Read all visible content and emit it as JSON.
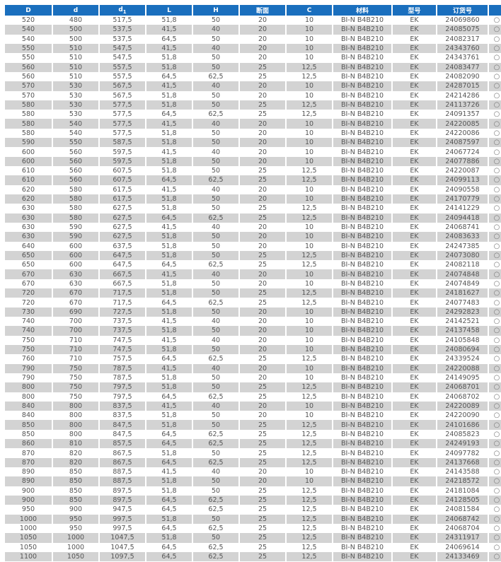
{
  "header": {
    "D": "D",
    "d": "d",
    "d1_base": "d",
    "d1_sub": "1",
    "L": "L",
    "H": "H",
    "section": "断面",
    "C": "C",
    "material": "材料",
    "type": "型号",
    "order_no": "订货号",
    "mark": ""
  },
  "accent_color": "#1a6fbe",
  "stripe_color": "#d3d3d3",
  "row_marker_icon": "circle-outline",
  "rows": [
    [
      "520",
      "480",
      "517,5",
      "51,8",
      "50",
      "20",
      "10",
      "BI-N B4B210",
      "EK",
      "24069860"
    ],
    [
      "540",
      "500",
      "537,5",
      "41,5",
      "40",
      "20",
      "10",
      "BI-N B4B210",
      "EK",
      "24085075"
    ],
    [
      "540",
      "500",
      "537,5",
      "64,5",
      "50",
      "20",
      "10",
      "BI-N B4B210",
      "EK",
      "24082317"
    ],
    [
      "550",
      "510",
      "547,5",
      "41,5",
      "40",
      "20",
      "10",
      "BI-N B4B210",
      "EK",
      "24343760"
    ],
    [
      "550",
      "510",
      "547,5",
      "51,8",
      "50",
      "20",
      "10",
      "BI-N B4B210",
      "EK",
      "24343761"
    ],
    [
      "560",
      "510",
      "557,5",
      "51,8",
      "50",
      "25",
      "12,5",
      "BI-N B4B210",
      "EK",
      "24083477"
    ],
    [
      "560",
      "510",
      "557,5",
      "64,5",
      "62,5",
      "25",
      "12,5",
      "BI-N B4B210",
      "EK",
      "24082090"
    ],
    [
      "570",
      "530",
      "567,5",
      "41,5",
      "40",
      "20",
      "10",
      "BI-N B4B210",
      "EK",
      "24287015"
    ],
    [
      "570",
      "530",
      "567,5",
      "51,8",
      "50",
      "20",
      "10",
      "BI-N B4B210",
      "EK",
      "24214286"
    ],
    [
      "580",
      "530",
      "577,5",
      "51,8",
      "50",
      "25",
      "12,5",
      "BI-N B4B210",
      "EK",
      "24113726"
    ],
    [
      "580",
      "530",
      "577,5",
      "64,5",
      "62,5",
      "25",
      "12,5",
      "BI-N B4B210",
      "EK",
      "24091357"
    ],
    [
      "580",
      "540",
      "577,5",
      "41,5",
      "40",
      "20",
      "10",
      "BI-N B4B210",
      "EK",
      "24220085"
    ],
    [
      "580",
      "540",
      "577,5",
      "51,8",
      "50",
      "20",
      "10",
      "BI-N B4B210",
      "EK",
      "24220086"
    ],
    [
      "590",
      "550",
      "587,5",
      "51,8",
      "50",
      "20",
      "10",
      "BI-N B4B210",
      "EK",
      "24087597"
    ],
    [
      "600",
      "560",
      "597,5",
      "41,5",
      "40",
      "20",
      "10",
      "BI-N B4B210",
      "EK",
      "24067724"
    ],
    [
      "600",
      "560",
      "597,5",
      "51,8",
      "50",
      "20",
      "10",
      "BI-N B4B210",
      "EK",
      "24077886"
    ],
    [
      "610",
      "560",
      "607,5",
      "51,8",
      "50",
      "25",
      "12,5",
      "BI-N B4B210",
      "EK",
      "24220087"
    ],
    [
      "610",
      "560",
      "607,5",
      "64,5",
      "62,5",
      "25",
      "12,5",
      "BI-N B4B210",
      "EK",
      "24099113"
    ],
    [
      "620",
      "580",
      "617,5",
      "41,5",
      "40",
      "20",
      "10",
      "BI-N B4B210",
      "EK",
      "24090558"
    ],
    [
      "620",
      "580",
      "617,5",
      "51,8",
      "50",
      "20",
      "10",
      "BI-N B4B210",
      "EK",
      "24170779"
    ],
    [
      "630",
      "580",
      "627,5",
      "51,8",
      "50",
      "25",
      "12,5",
      "BI-N B4B210",
      "EK",
      "24141229"
    ],
    [
      "630",
      "580",
      "627,5",
      "64,5",
      "62,5",
      "25",
      "12,5",
      "BI-N B4B210",
      "EK",
      "24094418"
    ],
    [
      "630",
      "590",
      "627,5",
      "41,5",
      "40",
      "20",
      "10",
      "BI-N B4B210",
      "EK",
      "24068741"
    ],
    [
      "630",
      "590",
      "627,5",
      "51,8",
      "50",
      "20",
      "10",
      "BI-N B4B210",
      "EK",
      "24083633"
    ],
    [
      "640",
      "600",
      "637,5",
      "51,8",
      "50",
      "20",
      "10",
      "BI-N B4B210",
      "EK",
      "24247385"
    ],
    [
      "650",
      "600",
      "647,5",
      "51,8",
      "50",
      "25",
      "12,5",
      "BI-N B4B210",
      "EK",
      "24073080"
    ],
    [
      "650",
      "600",
      "647,5",
      "64,5",
      "62,5",
      "25",
      "12,5",
      "BI-N B4B210",
      "EK",
      "24082118"
    ],
    [
      "670",
      "630",
      "667,5",
      "41,5",
      "40",
      "20",
      "10",
      "BI-N B4B210",
      "EK",
      "24074848"
    ],
    [
      "670",
      "630",
      "667,5",
      "51,8",
      "50",
      "20",
      "10",
      "BI-N B4B210",
      "EK",
      "24074849"
    ],
    [
      "720",
      "670",
      "717,5",
      "51,8",
      "50",
      "25",
      "12,5",
      "BI-N B4B210",
      "EK",
      "24181627"
    ],
    [
      "720",
      "670",
      "717,5",
      "64,5",
      "62,5",
      "25",
      "12,5",
      "BI-N B4B210",
      "EK",
      "24077483"
    ],
    [
      "730",
      "690",
      "727,5",
      "51,8",
      "50",
      "20",
      "10",
      "BI-N B4B210",
      "EK",
      "24292823"
    ],
    [
      "740",
      "700",
      "737,5",
      "41,5",
      "40",
      "20",
      "10",
      "BI-N B4B210",
      "EK",
      "24142521"
    ],
    [
      "740",
      "700",
      "737,5",
      "51,8",
      "50",
      "20",
      "10",
      "BI-N B4B210",
      "EK",
      "24137458"
    ],
    [
      "750",
      "710",
      "747,5",
      "41,5",
      "40",
      "20",
      "10",
      "BI-N B4B210",
      "EK",
      "24105848"
    ],
    [
      "750",
      "710",
      "747,5",
      "51,8",
      "50",
      "20",
      "10",
      "BI-N B4B210",
      "EK",
      "24080694"
    ],
    [
      "760",
      "710",
      "757,5",
      "64,5",
      "62,5",
      "25",
      "12,5",
      "BI-N B4B210",
      "EK",
      "24339524"
    ],
    [
      "790",
      "750",
      "787,5",
      "41,5",
      "40",
      "20",
      "10",
      "BI-N B4B210",
      "EK",
      "24220088"
    ],
    [
      "790",
      "750",
      "787,5",
      "51,8",
      "50",
      "20",
      "10",
      "BI-N B4B210",
      "EK",
      "24149095"
    ],
    [
      "800",
      "750",
      "797,5",
      "51,8",
      "50",
      "25",
      "12,5",
      "BI-N B4B210",
      "EK",
      "24068701"
    ],
    [
      "800",
      "750",
      "797,5",
      "64,5",
      "62,5",
      "25",
      "12,5",
      "BI-N B4B210",
      "EK",
      "24068702"
    ],
    [
      "840",
      "800",
      "837,5",
      "41,5",
      "40",
      "20",
      "10",
      "BI-N B4B210",
      "EK",
      "24220089"
    ],
    [
      "840",
      "800",
      "837,5",
      "51,8",
      "50",
      "20",
      "10",
      "BI-N B4B210",
      "EK",
      "24220090"
    ],
    [
      "850",
      "800",
      "847,5",
      "51,8",
      "50",
      "25",
      "12,5",
      "BI-N B4B210",
      "EK",
      "24101686"
    ],
    [
      "850",
      "800",
      "847,5",
      "64,5",
      "62,5",
      "25",
      "12,5",
      "BI-N B4B210",
      "EK",
      "24085823"
    ],
    [
      "860",
      "810",
      "857,5",
      "64,5",
      "62,5",
      "25",
      "12,5",
      "BI-N B4B210",
      "EK",
      "24249193"
    ],
    [
      "870",
      "820",
      "867,5",
      "51,8",
      "50",
      "25",
      "12,5",
      "BI-N B4B210",
      "EK",
      "24097782"
    ],
    [
      "870",
      "820",
      "867,5",
      "64,5",
      "62,5",
      "25",
      "12,5",
      "BI-N B4B210",
      "EK",
      "24137668"
    ],
    [
      "890",
      "850",
      "887,5",
      "41,5",
      "40",
      "20",
      "10",
      "BI-N B4B210",
      "EK",
      "24143588"
    ],
    [
      "890",
      "850",
      "887,5",
      "51,8",
      "50",
      "20",
      "10",
      "BI-N B4B210",
      "EK",
      "24218572"
    ],
    [
      "900",
      "850",
      "897,5",
      "51,8",
      "50",
      "25",
      "12,5",
      "BI-N B4B210",
      "EK",
      "24181084"
    ],
    [
      "900",
      "850",
      "897,5",
      "64,5",
      "62,5",
      "25",
      "12,5",
      "BI-N B4B210",
      "EK",
      "24128505"
    ],
    [
      "950",
      "900",
      "947,5",
      "64,5",
      "62,5",
      "25",
      "12,5",
      "BI-N B4B210",
      "EK",
      "24081584"
    ],
    [
      "1000",
      "950",
      "997,5",
      "51,8",
      "50",
      "25",
      "12,5",
      "BI-N B4B210",
      "EK",
      "24068742"
    ],
    [
      "1000",
      "950",
      "997,5",
      "64,5",
      "62,5",
      "25",
      "12,5",
      "BI-N B4B210",
      "EK",
      "24068704"
    ],
    [
      "1050",
      "1000",
      "1047,5",
      "51,8",
      "50",
      "25",
      "12,5",
      "BI-N B4B210",
      "EK",
      "24311917"
    ],
    [
      "1050",
      "1000",
      "1047,5",
      "64,5",
      "62,5",
      "25",
      "12,5",
      "BI-N B4B210",
      "EK",
      "24069614"
    ],
    [
      "1100",
      "1050",
      "1097,5",
      "64,5",
      "62,5",
      "25",
      "12,5",
      "BI-N B4B210",
      "EK",
      "24133469"
    ]
  ]
}
